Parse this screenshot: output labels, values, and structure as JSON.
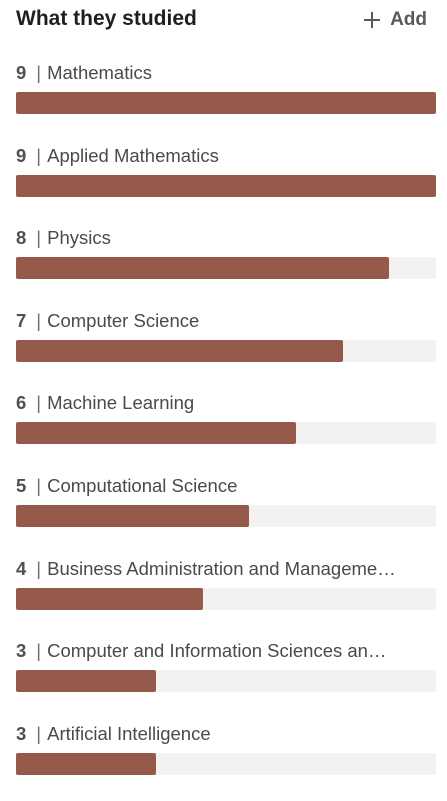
{
  "header": {
    "title": "What they studied",
    "add_label": "Add"
  },
  "colors": {
    "bar_fill": "#955a4a",
    "bar_track": "#f3f2f1"
  },
  "max_count": 9,
  "items": [
    {
      "count": "9",
      "label": "Mathematics"
    },
    {
      "count": "9",
      "label": "Applied Mathematics"
    },
    {
      "count": "8",
      "label": "Physics"
    },
    {
      "count": "7",
      "label": "Computer Science"
    },
    {
      "count": "6",
      "label": "Machine Learning"
    },
    {
      "count": "5",
      "label": "Computational Science"
    },
    {
      "count": "4",
      "label": "Business Administration and Manageme…"
    },
    {
      "count": "3",
      "label": "Computer and Information Sciences an…"
    },
    {
      "count": "3",
      "label": "Artificial Intelligence"
    }
  ]
}
